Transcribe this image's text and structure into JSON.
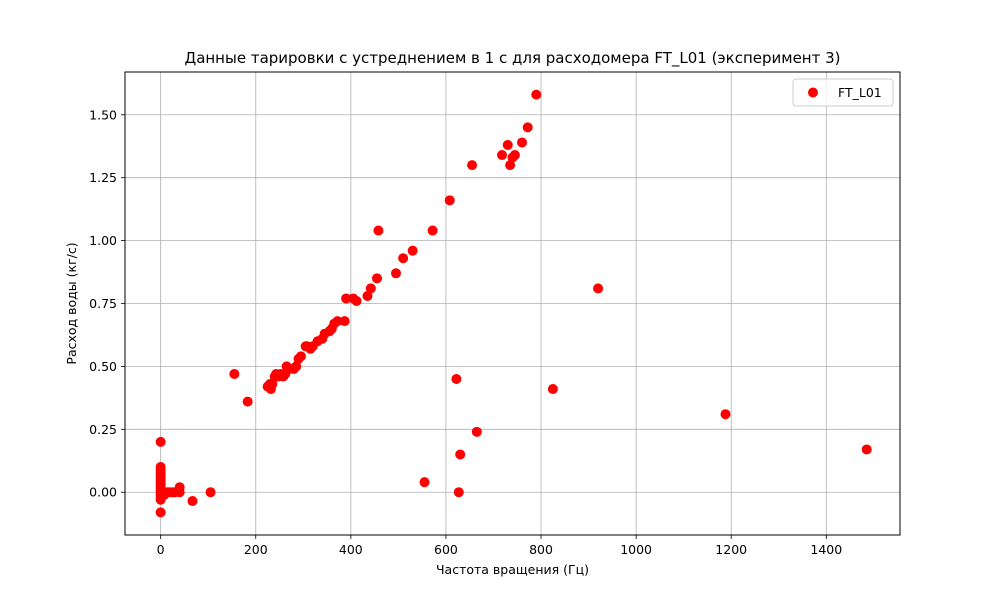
{
  "chart_data": {
    "type": "scatter",
    "title": "Данные тарировки с устреднением в 1 с для расходомера FT_L01 (эксперимент 3)",
    "xlabel": "Частота вращения (Гц)",
    "ylabel": "Расход воды (кг/с)",
    "xlim": [
      -75,
      1555
    ],
    "ylim": [
      -0.17,
      1.67
    ],
    "xticks": [
      0,
      200,
      400,
      600,
      800,
      1000,
      1200,
      1400
    ],
    "xtick_labels": [
      "0",
      "200",
      "400",
      "600",
      "800",
      "1000",
      "1200",
      "1400"
    ],
    "yticks": [
      0.0,
      0.25,
      0.5,
      0.75,
      1.0,
      1.25,
      1.5
    ],
    "ytick_labels": [
      "0.00",
      "0.25",
      "0.50",
      "0.75",
      "1.00",
      "1.25",
      "1.50"
    ],
    "grid": true,
    "legend_position": "top-right",
    "series": [
      {
        "name": "FT_L01",
        "color": "#ff0000",
        "marker": "circle",
        "x": [
          0,
          0,
          0,
          0,
          0,
          0,
          0,
          0,
          0,
          0,
          0,
          0,
          0,
          0,
          0,
          0,
          3,
          5,
          8,
          10,
          15,
          20,
          25,
          30,
          40,
          40,
          67,
          105,
          155,
          183,
          225,
          230,
          232,
          235,
          240,
          243,
          248,
          252,
          258,
          262,
          265,
          270,
          280,
          285,
          290,
          295,
          305,
          308,
          315,
          320,
          330,
          340,
          345,
          355,
          360,
          365,
          372,
          387,
          390,
          405,
          412,
          435,
          442,
          455,
          458,
          495,
          510,
          530,
          572,
          608,
          655,
          718,
          730,
          735,
          740,
          745,
          760,
          772,
          790,
          555,
          622,
          627,
          630,
          665,
          825,
          920,
          1188,
          1485
        ],
        "y": [
          0.2,
          0.1,
          0.09,
          0.08,
          0.07,
          0.06,
          0.05,
          0.04,
          0.03,
          0.02,
          0.01,
          0.0,
          -0.01,
          -0.02,
          -0.03,
          -0.08,
          0.0,
          0.0,
          -0.01,
          0.0,
          0.0,
          0.0,
          0.0,
          0.0,
          0.02,
          0.0,
          -0.035,
          0.0,
          0.47,
          0.36,
          0.42,
          0.43,
          0.41,
          0.43,
          0.46,
          0.47,
          0.46,
          0.47,
          0.46,
          0.47,
          0.5,
          0.49,
          0.49,
          0.5,
          0.53,
          0.54,
          0.58,
          0.58,
          0.57,
          0.58,
          0.6,
          0.61,
          0.63,
          0.64,
          0.65,
          0.67,
          0.68,
          0.68,
          0.77,
          0.77,
          0.76,
          0.78,
          0.81,
          0.85,
          1.04,
          0.87,
          0.93,
          0.96,
          1.04,
          1.16,
          1.3,
          1.34,
          1.38,
          1.3,
          1.33,
          1.34,
          1.39,
          1.45,
          1.58,
          0.04,
          0.45,
          0.0,
          0.15,
          0.24,
          0.41,
          0.81,
          0.31,
          0.17
        ]
      }
    ]
  }
}
